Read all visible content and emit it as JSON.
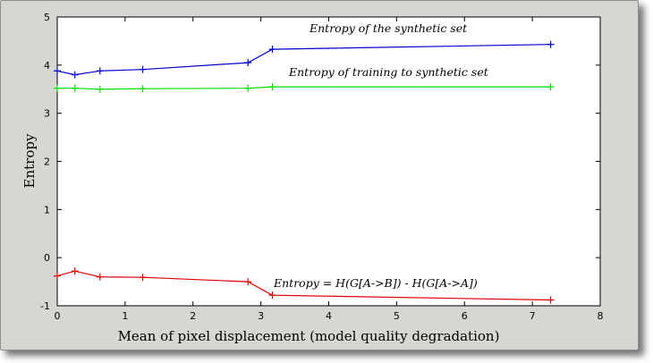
{
  "chart_data": {
    "type": "line",
    "title": "",
    "xlabel": "Mean of pixel displacement (model quality degradation)",
    "ylabel": "Entropy",
    "xlim": [
      0,
      8
    ],
    "ylim": [
      -1,
      5
    ],
    "xticks": [
      "0",
      "1",
      "2",
      "3",
      "4",
      "5",
      "6",
      "7",
      "8"
    ],
    "yticks": [
      "-1",
      "0",
      "1",
      "2",
      "3",
      "4",
      "5"
    ],
    "grid": false,
    "x": [
      0,
      0.26,
      0.63,
      1.26,
      2.81,
      3.17,
      7.27
    ],
    "series": [
      {
        "name": "Entropy of the synthetic set",
        "color": "#0000cc",
        "values": [
          3.88,
          3.8,
          3.88,
          3.91,
          4.05,
          4.33,
          4.43
        ]
      },
      {
        "name": "Entropy of training to synthetic set",
        "color": "#00dd00",
        "values": [
          3.52,
          3.52,
          3.5,
          3.51,
          3.52,
          3.55,
          3.55
        ]
      },
      {
        "name": "Entropy = H(G[A->B]) - H(G[A->A])",
        "color": "#dd0000",
        "values": [
          -0.38,
          -0.28,
          -0.4,
          -0.41,
          -0.5,
          -0.78,
          -0.88
        ]
      }
    ]
  }
}
